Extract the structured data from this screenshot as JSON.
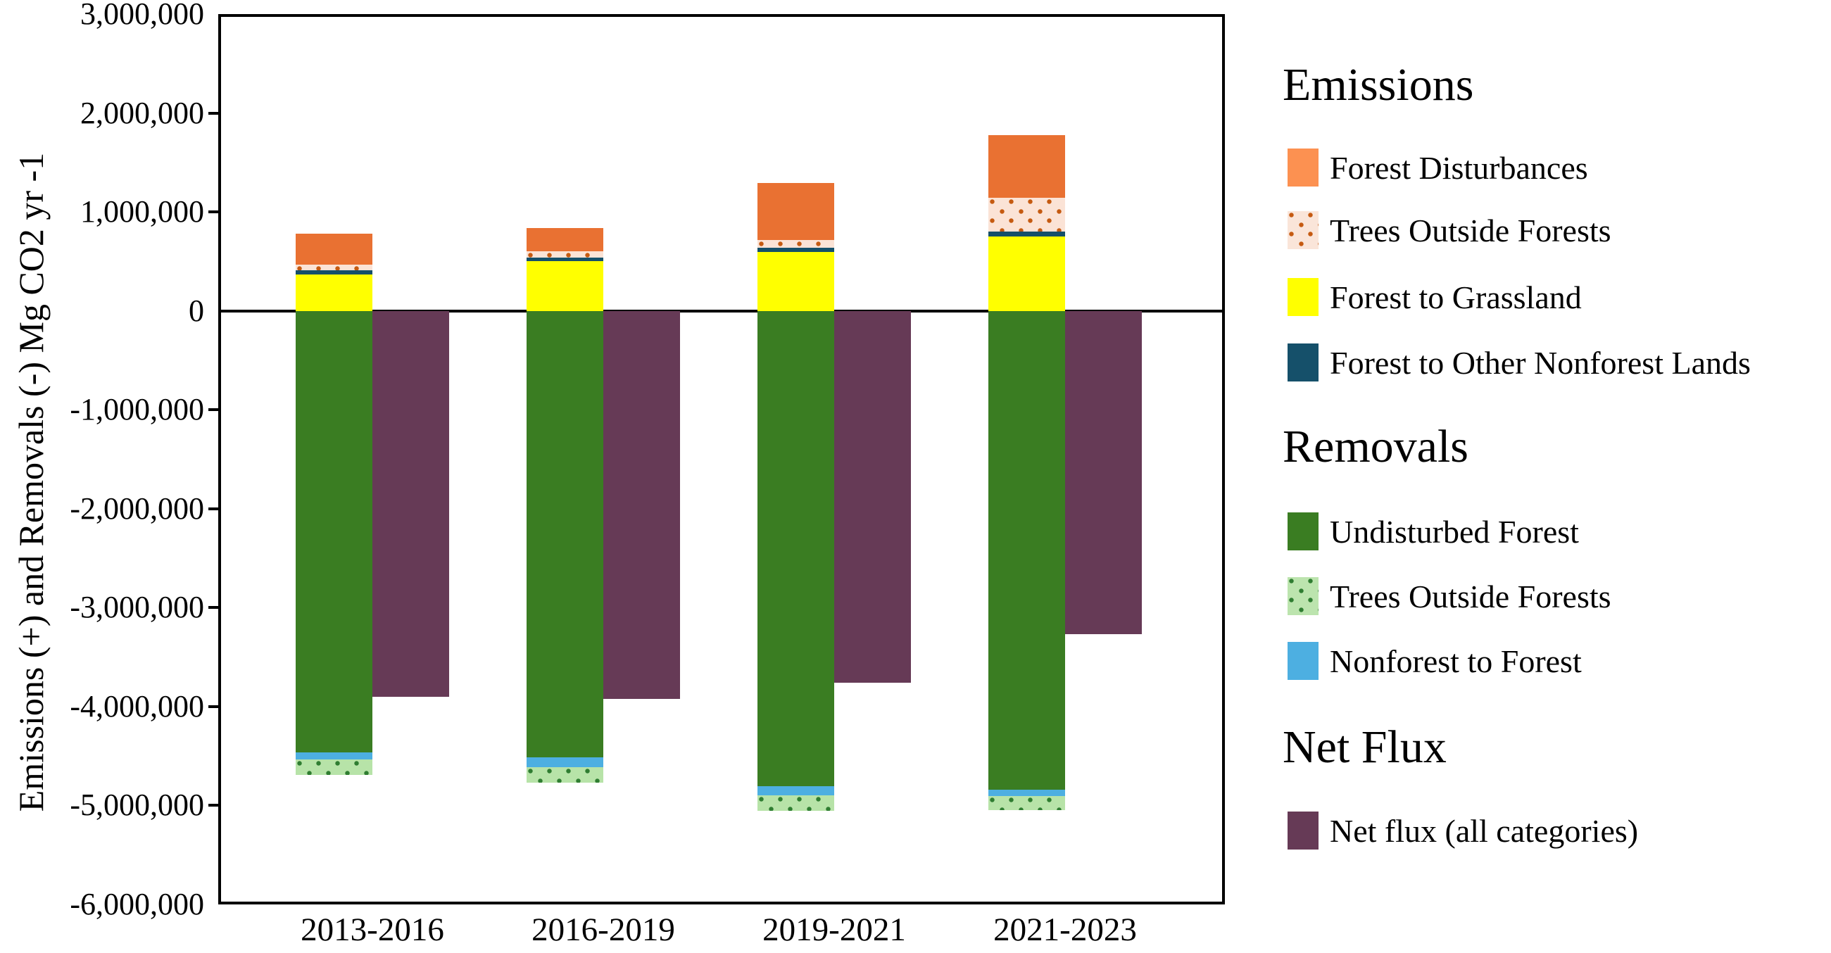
{
  "y_axis": {
    "title": "Emissions (+) and Removals (-) Mg CO2 yr -1",
    "tick_labels": [
      "3,000,000",
      "2,000,000",
      "1,000,000",
      "0",
      "-1,000,000",
      "-2,000,000",
      "-3,000,000",
      "-4,000,000",
      "-5,000,000",
      "-6,000,000"
    ],
    "step": 1000000
  },
  "chart_data": {
    "type": "bar",
    "title": "",
    "xlabel": "",
    "ylabel": "Emissions (+) and Removals (-) Mg CO2 yr -1",
    "ylim": [
      -6000000,
      3000000
    ],
    "grid": false,
    "legend_position": "right",
    "categories": [
      "2013-2016",
      "2016-2019",
      "2019-2021",
      "2021-2023"
    ],
    "series": [
      {
        "name": "Forest to Grassland",
        "group": "emissions",
        "color": "#FFFF00",
        "values": [
          370000,
          505000,
          595000,
          755000
        ]
      },
      {
        "name": "Forest to Other Nonforest Lands",
        "group": "emissions",
        "color": "#15506A",
        "values": [
          40000,
          30000,
          40000,
          45000
        ]
      },
      {
        "name": "Trees Outside Forests (emissions)",
        "group": "emissions",
        "color": "#FBE3D6",
        "dots": "#C55A11",
        "values": [
          60000,
          70000,
          80000,
          345000
        ]
      },
      {
        "name": "Forest Disturbances",
        "group": "emissions",
        "color": "#E97132",
        "values": [
          310000,
          230000,
          575000,
          630000
        ]
      },
      {
        "name": "Undisturbed Forest",
        "group": "removals",
        "color": "#3A7D22",
        "values": [
          -4460000,
          -4510000,
          -4805000,
          -4840000
        ]
      },
      {
        "name": "Nonforest to Forest",
        "group": "removals",
        "color": "#4DAFE1",
        "values": [
          -75000,
          -100000,
          -90000,
          -65000
        ]
      },
      {
        "name": "Trees Outside Forests (removals)",
        "group": "removals",
        "color": "#B7E3A8",
        "dots": "#2F7D31",
        "values": [
          -155000,
          -160000,
          -160000,
          -145000
        ]
      }
    ],
    "net_flux": {
      "name": "Net flux (all categories)",
      "color": "#663A56",
      "values": [
        -3900000,
        -3920000,
        -3760000,
        -3270000
      ]
    }
  },
  "legend": {
    "sections": [
      {
        "title": "Emissions",
        "items": [
          {
            "label": "Forest Disturbances",
            "swatch": "#FC9151"
          },
          {
            "label": "Trees Outside Forests",
            "swatch": "#FAE5D9",
            "dots": "#C55A11"
          },
          {
            "label": "Forest to Grassland",
            "swatch": "#FFFF00"
          },
          {
            "label": "Forest to Other Nonforest Lands",
            "swatch": "#15506A"
          }
        ]
      },
      {
        "title": "Removals",
        "items": [
          {
            "label": "Undisturbed Forest",
            "swatch": "#3A7D22"
          },
          {
            "label": "Trees Outside Forests",
            "swatch": "#BCE4AE",
            "dots": "#2F7D31"
          },
          {
            "label": "Nonforest to Forest",
            "swatch": "#4DAFE1"
          }
        ]
      },
      {
        "title": "Net Flux",
        "items": [
          {
            "label": "Net flux (all categories)",
            "swatch": "#663A56"
          }
        ]
      }
    ]
  }
}
